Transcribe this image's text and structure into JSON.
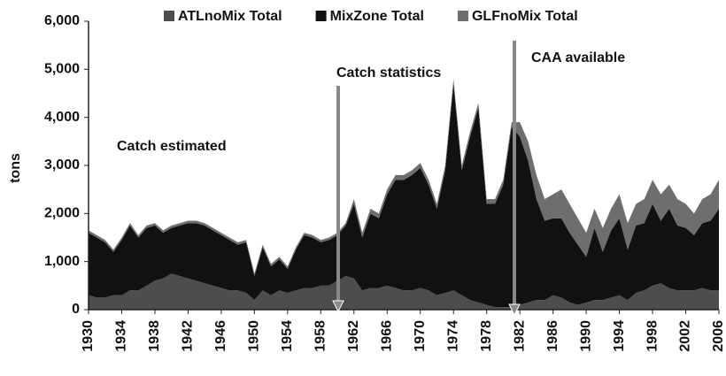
{
  "chart_data": {
    "type": "stacked_area",
    "ylabel": "tons",
    "annotations": [
      "Catch estimated",
      "Catch statistics",
      "CAA available"
    ],
    "x": [
      1930,
      1931,
      1932,
      1933,
      1934,
      1935,
      1936,
      1937,
      1938,
      1939,
      1940,
      1941,
      1942,
      1943,
      1944,
      1945,
      1946,
      1947,
      1948,
      1949,
      1950,
      1951,
      1952,
      1953,
      1954,
      1955,
      1956,
      1957,
      1958,
      1959,
      1960,
      1961,
      1962,
      1963,
      1964,
      1965,
      1966,
      1967,
      1968,
      1969,
      1970,
      1971,
      1972,
      1973,
      1974,
      1975,
      1976,
      1977,
      1978,
      1979,
      1980,
      1981,
      1982,
      1983,
      1984,
      1985,
      1986,
      1987,
      1988,
      1989,
      1990,
      1991,
      1992,
      1993,
      1994,
      1995,
      1996,
      1997,
      1998,
      1999,
      2000,
      2001,
      2002,
      2003,
      2004,
      2005,
      2006
    ],
    "series": [
      {
        "name": "ATLnoMix Total",
        "color": "#4d4d4d",
        "values": [
          300,
          250,
          250,
          300,
          300,
          400,
          400,
          500,
          600,
          650,
          750,
          700,
          650,
          600,
          550,
          500,
          450,
          400,
          400,
          350,
          200,
          400,
          300,
          400,
          350,
          400,
          450,
          450,
          500,
          500,
          600,
          700,
          650,
          400,
          450,
          450,
          500,
          450,
          400,
          400,
          450,
          400,
          300,
          350,
          400,
          300,
          200,
          150,
          100,
          50,
          50,
          50,
          100,
          150,
          200,
          200,
          300,
          250,
          150,
          100,
          150,
          200,
          200,
          250,
          300,
          200,
          350,
          400,
          500,
          550,
          450,
          400,
          400,
          400,
          450,
          400,
          400
        ]
      },
      {
        "name": "MixZone Total",
        "color": "#111111",
        "values": [
          1300,
          1250,
          1150,
          900,
          1150,
          1350,
          1100,
          1200,
          1150,
          950,
          950,
          1050,
          1150,
          1200,
          1200,
          1150,
          1100,
          1050,
          950,
          1050,
          500,
          900,
          600,
          650,
          500,
          850,
          1100,
          1050,
          900,
          950,
          950,
          1050,
          1550,
          1100,
          1550,
          1450,
          1900,
          2250,
          2300,
          2400,
          2500,
          2200,
          1800,
          2550,
          4300,
          2600,
          3400,
          4050,
          2100,
          2150,
          2550,
          3750,
          3500,
          2950,
          2100,
          1650,
          1600,
          1650,
          1450,
          1250,
          950,
          1500,
          1000,
          1400,
          1600,
          1050,
          1400,
          1400,
          1700,
          1300,
          1650,
          1350,
          1300,
          1150,
          1350,
          1450,
          1700
        ]
      },
      {
        "name": "GLFnoMix Total",
        "color": "#6e6e6e",
        "values": [
          50,
          50,
          50,
          50,
          50,
          50,
          50,
          50,
          50,
          50,
          50,
          50,
          50,
          50,
          50,
          50,
          50,
          50,
          50,
          50,
          50,
          50,
          50,
          50,
          50,
          50,
          50,
          50,
          50,
          50,
          50,
          50,
          100,
          100,
          100,
          100,
          100,
          100,
          100,
          100,
          100,
          100,
          100,
          100,
          100,
          100,
          100,
          100,
          100,
          100,
          100,
          100,
          300,
          400,
          500,
          450,
          500,
          600,
          600,
          550,
          500,
          400,
          500,
          450,
          500,
          550,
          450,
          500,
          500,
          550,
          500,
          550,
          500,
          450,
          500,
          550,
          600
        ]
      }
    ],
    "xlim": [
      1930,
      2006
    ],
    "xticks": [
      1930,
      1934,
      1938,
      1942,
      1946,
      1950,
      1954,
      1958,
      1962,
      1966,
      1970,
      1974,
      1978,
      1982,
      1986,
      1990,
      1994,
      1998,
      2002,
      2006
    ],
    "ylim": [
      0,
      6000
    ],
    "yticks": [
      0,
      {
        "value": 1000,
        "label": "1,000"
      },
      {
        "value": 2000,
        "label": "2,000"
      },
      {
        "value": 3000,
        "label": "3,000"
      },
      {
        "value": 4000,
        "label": "4,000"
      },
      {
        "value": 5000,
        "label": "5,000"
      },
      {
        "value": 6000,
        "label": "6,000"
      }
    ]
  }
}
